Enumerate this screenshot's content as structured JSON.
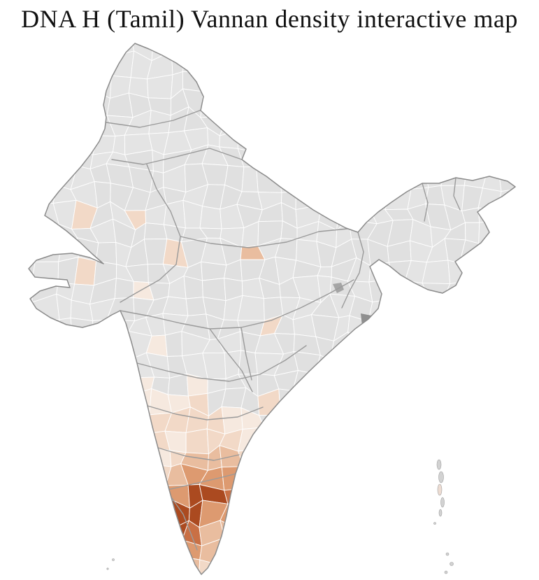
{
  "title": "DNA H (Tamil) Vannan density interactive map",
  "map": {
    "label": "india-district-density-choropleth",
    "background": "#ffffff",
    "colors": {
      "land_gray_a": "#e4e4e4",
      "land_gray_b": "#e0e0e0",
      "district_border": "#ffffff",
      "state_border": "#9a9a9a",
      "outline": "#8b8b8b",
      "island": "#d2d2d2",
      "island_edge": "#a0a0a0",
      "no_data_dark": "#8f8f8f",
      "no_data_mid": "#a5a5a5",
      "density_scale": [
        "#f6e9df",
        "#f2d9c7",
        "#e9bd9f",
        "#dd9a70",
        "#c97045",
        "#ab4a20",
        "#7d2507"
      ]
    }
  }
}
